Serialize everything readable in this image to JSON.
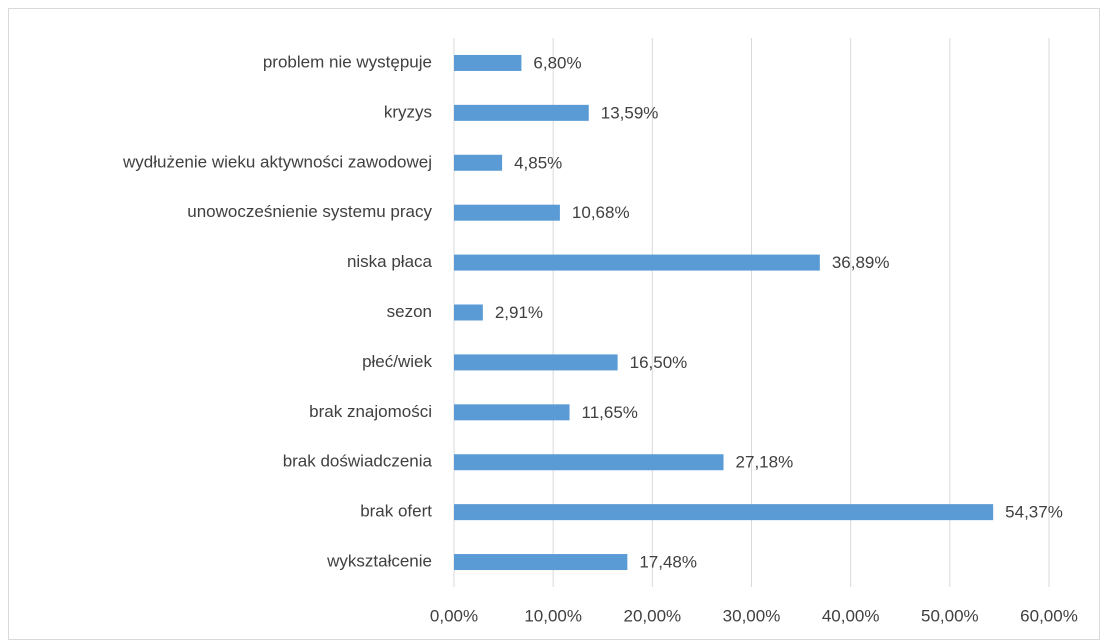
{
  "chart_data": {
    "type": "hbar",
    "categories": [
      "problem nie występuje",
      "kryzys",
      "wydłużenie wieku aktywności zawodowej",
      "unowocześnienie systemu pracy",
      "niska płaca",
      "sezon",
      "płeć/wiek",
      "brak znajomości",
      "brak doświadczenia",
      "brak ofert",
      "wykształcenie"
    ],
    "values": [
      6.8,
      13.59,
      4.85,
      10.68,
      36.89,
      2.91,
      16.5,
      11.65,
      27.18,
      54.37,
      17.48
    ],
    "value_labels": [
      "6,80%",
      "13,59%",
      "4,85%",
      "10,68%",
      "36,89%",
      "2,91%",
      "16,50%",
      "11,65%",
      "27,18%",
      "54,37%",
      "17,48%"
    ],
    "color": "#5b9bd5",
    "xlim": [
      0,
      60
    ],
    "xticks": [
      {
        "value": 0,
        "label": "0,00%"
      },
      {
        "value": 10,
        "label": "10,00%"
      },
      {
        "value": 20,
        "label": "20,00%"
      },
      {
        "value": 30,
        "label": "30,00%"
      },
      {
        "value": 40,
        "label": "40,00%"
      },
      {
        "value": 50,
        "label": "50,00%"
      },
      {
        "value": 60,
        "label": "60,00%"
      }
    ],
    "grid": true
  }
}
